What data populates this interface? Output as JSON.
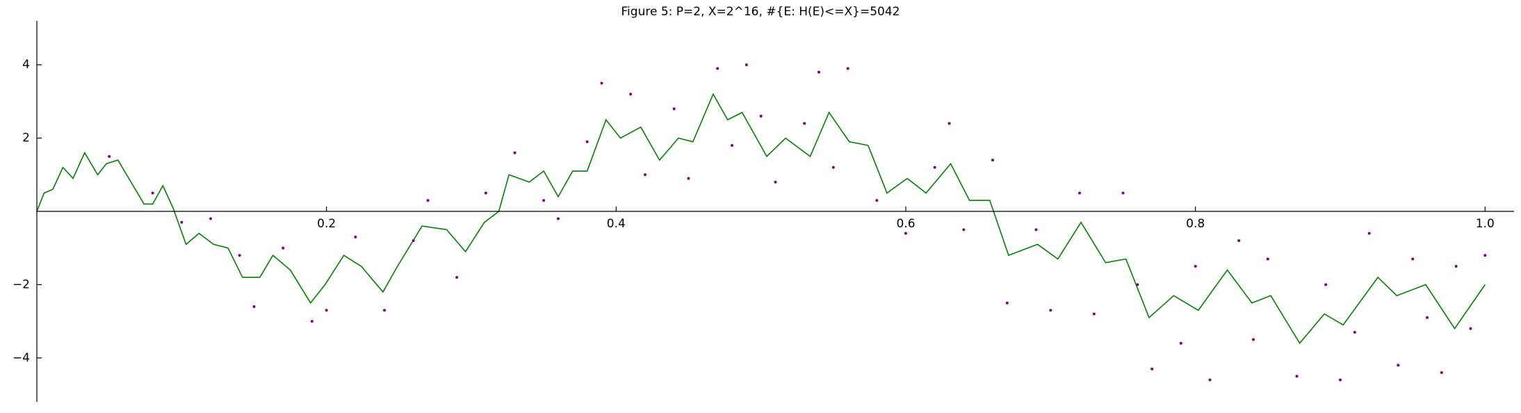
{
  "chart_data": {
    "type": "line",
    "title": "Figure 5: P=2, X=2^16, #{E: H(E)<=X}=5042",
    "xlim": [
      0,
      1.02
    ],
    "ylim": [
      -5.2,
      5.2
    ],
    "xticks": [
      0.2,
      0.4,
      0.6,
      0.8,
      {
        "value": 1,
        "label": "1.0"
      }
    ],
    "yticks": [
      {
        "value": -4,
        "label": "−4"
      },
      {
        "value": -2,
        "label": "−2"
      },
      2,
      4
    ],
    "series": [
      {
        "type": "line",
        "color": "#008000",
        "x": [
          0,
          0.005,
          0.011,
          0.018,
          0.025,
          0.033,
          0.042,
          0.048,
          0.056,
          0.065,
          0.074,
          0.08,
          0.087,
          0.094,
          0.103,
          0.112,
          0.122,
          0.132,
          0.142,
          0.154,
          0.163,
          0.175,
          0.189,
          0.199,
          0.212,
          0.224,
          0.239,
          0.249,
          0.266,
          0.283,
          0.296,
          0.309,
          0.319,
          0.326,
          0.34,
          0.35,
          0.36,
          0.37,
          0.38,
          0.393,
          0.403,
          0.417,
          0.43,
          0.443,
          0.453,
          0.467,
          0.477,
          0.487,
          0.504,
          0.517,
          0.534,
          0.547,
          0.561,
          0.574,
          0.587,
          0.601,
          0.614,
          0.631,
          0.644,
          0.658,
          0.671,
          0.691,
          0.705,
          0.721,
          0.738,
          0.752,
          0.768,
          0.785,
          0.802,
          0.822,
          0.839,
          0.852,
          0.872,
          0.889,
          0.902,
          0.926,
          0.939,
          0.959,
          0.979,
          1.0
        ],
        "values": [
          0,
          0.5,
          0.6,
          1.2,
          0.9,
          1.6,
          1.0,
          1.3,
          1.4,
          0.8,
          0.2,
          0.2,
          0.7,
          0.1,
          -0.9,
          -0.6,
          -0.9,
          -1.0,
          -1.8,
          -1.8,
          -1.2,
          -1.6,
          -2.5,
          -2.0,
          -1.2,
          -1.5,
          -2.2,
          -1.5,
          -0.4,
          -0.5,
          -1.1,
          -0.3,
          0,
          1.0,
          0.8,
          1.1,
          0.4,
          1.1,
          1.1,
          2.5,
          2.0,
          2.3,
          1.4,
          2.0,
          1.9,
          3.2,
          2.5,
          2.7,
          1.5,
          2.0,
          1.5,
          2.7,
          1.9,
          1.8,
          0.5,
          0.9,
          0.5,
          1.3,
          0.3,
          0.3,
          -1.2,
          -0.9,
          -1.3,
          -0.3,
          -1.4,
          -1.3,
          -2.9,
          -2.3,
          -2.7,
          -1.6,
          -2.5,
          -2.3,
          -3.6,
          -2.8,
          -3.1,
          -1.8,
          -2.3,
          -2.0,
          -3.2,
          -2.0
        ]
      },
      {
        "type": "scatter",
        "color": "#800080",
        "x": [
          0.05,
          0.08,
          0.1,
          0.12,
          0.14,
          0.15,
          0.17,
          0.19,
          0.2,
          0.22,
          0.24,
          0.26,
          0.27,
          0.29,
          0.31,
          0.33,
          0.35,
          0.36,
          0.38,
          0.39,
          0.41,
          0.42,
          0.44,
          0.45,
          0.47,
          0.48,
          0.49,
          0.5,
          0.51,
          0.53,
          0.54,
          0.55,
          0.56,
          0.58,
          0.6,
          0.62,
          0.63,
          0.64,
          0.66,
          0.67,
          0.69,
          0.7,
          0.72,
          0.73,
          0.75,
          0.76,
          0.77,
          0.79,
          0.8,
          0.81,
          0.83,
          0.84,
          0.85,
          0.87,
          0.89,
          0.9,
          0.91,
          0.92,
          0.94,
          0.95,
          0.96,
          0.97,
          0.98,
          0.99,
          1.0
        ],
        "values": [
          1.5,
          0.5,
          -0.3,
          -0.2,
          -1.2,
          -2.6,
          -1.0,
          -3.0,
          -2.7,
          -0.7,
          -2.7,
          -0.8,
          0.3,
          -1.8,
          0.5,
          1.6,
          0.3,
          -0.2,
          1.9,
          3.5,
          3.2,
          1.0,
          2.8,
          0.9,
          3.9,
          1.8,
          4.0,
          2.6,
          0.8,
          2.4,
          3.8,
          1.2,
          3.9,
          0.3,
          -0.6,
          1.2,
          2.4,
          -0.5,
          1.4,
          -2.5,
          -0.5,
          -2.7,
          0.5,
          -2.8,
          0.5,
          -2.0,
          -4.3,
          -3.6,
          -1.5,
          -4.6,
          -0.8,
          -3.5,
          -1.3,
          -4.5,
          -2.0,
          -4.6,
          -3.3,
          -0.6,
          -4.2,
          -1.3,
          -2.9,
          -4.4,
          -1.5,
          -3.2,
          -1.2
        ]
      }
    ]
  }
}
